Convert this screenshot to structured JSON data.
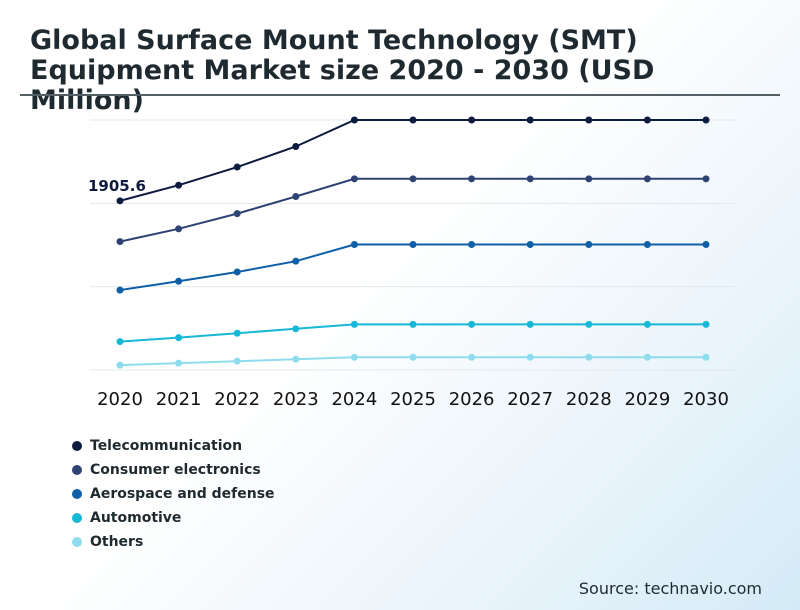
{
  "title": "Global Surface Mount Technology (SMT) Equipment Market size 2020 - 2030 (USD Million)",
  "source": "Source: technavio.com",
  "chart_data": {
    "type": "line",
    "title": "Global Surface Mount Technology (SMT) Equipment Market size 2020 - 2030 (USD Million)",
    "xlabel": "",
    "ylabel": "",
    "categories": [
      "2020",
      "2021",
      "2022",
      "2023",
      "2024",
      "2025",
      "2026",
      "2027",
      "2028",
      "2029",
      "2030"
    ],
    "series": [
      {
        "name": "Telecommunication",
        "color": "#0d1b3e",
        "values": [
          1905.6,
          2065,
          2250,
          2460,
          2730,
          2730,
          2730,
          2730,
          2730,
          2730,
          2730
        ]
      },
      {
        "name": "Consumer electronics",
        "color": "#2e4374",
        "values": [
          1490,
          1620,
          1775,
          1950,
          2130,
          2130,
          2130,
          2130,
          2130,
          2130,
          2130
        ]
      },
      {
        "name": "Aerospace and defense",
        "color": "#0f5ea8",
        "values": [
          995,
          1085,
          1180,
          1290,
          1460,
          1460,
          1460,
          1460,
          1460,
          1460,
          1460
        ]
      },
      {
        "name": "Automotive",
        "color": "#17b8d6",
        "values": [
          470,
          510,
          555,
          600,
          645,
          645,
          645,
          645,
          645,
          645,
          645
        ]
      },
      {
        "name": "Others",
        "color": "#8fdcef",
        "values": [
          230,
          250,
          270,
          290,
          310,
          310,
          310,
          310,
          310,
          310,
          310
        ]
      }
    ],
    "annotations": [
      {
        "series": 0,
        "index": 0,
        "text": "1905.6"
      }
    ],
    "ylim": [
      180,
      2730
    ],
    "grid": true,
    "legend_position": "bottom-left"
  }
}
